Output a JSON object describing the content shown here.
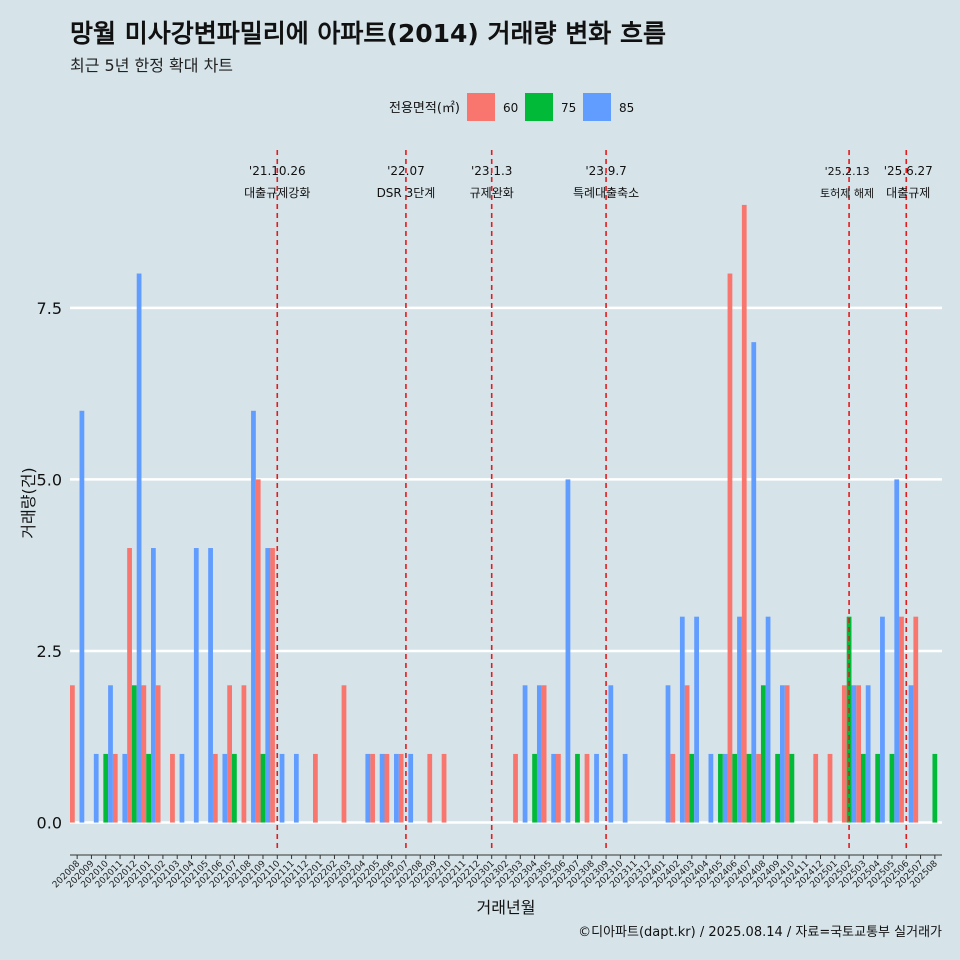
{
  "title": "망월 미사강변파밀리에 아파트(2014) 거래량 변화 흐름",
  "subtitle": "최근 5년 한정 확대 차트",
  "caption": "©디아파트(dapt.kr) / 2025.08.14 / 자료=국토교통부 실거래가",
  "colors": {
    "background": "#d6e4ea",
    "s60": "#f8766d",
    "s75": "#00ba38",
    "s85": "#619cff",
    "event_line": "#e41a1c"
  },
  "chart_data": {
    "type": "bar",
    "xlabel": "거래년월",
    "ylabel": "거래량(건)",
    "ylim": [
      -0.4,
      9.8
    ],
    "yticks": [
      0.0,
      2.5,
      5.0,
      7.5
    ],
    "ytick_labels": [
      "0.0",
      "2.5",
      "5.0",
      "7.5"
    ],
    "grid": true,
    "legend": {
      "title": "전용면적(㎡)",
      "position": "top",
      "entries": [
        "60",
        "75",
        "85"
      ]
    },
    "categories": [
      "202008",
      "202009",
      "202010",
      "202011",
      "202012",
      "202101",
      "202102",
      "202103",
      "202104",
      "202105",
      "202106",
      "202107",
      "202108",
      "202109",
      "202110",
      "202111",
      "202112",
      "202201",
      "202202",
      "202203",
      "202204",
      "202205",
      "202206",
      "202207",
      "202208",
      "202209",
      "202210",
      "202211",
      "202212",
      "202301",
      "202302",
      "202303",
      "202304",
      "202305",
      "202306",
      "202307",
      "202308",
      "202309",
      "202310",
      "202311",
      "202312",
      "202401",
      "202402",
      "202403",
      "202404",
      "202405",
      "202406",
      "202407",
      "202408",
      "202409",
      "202410",
      "202411",
      "202412",
      "202501",
      "202502",
      "202503",
      "202504",
      "202505",
      "202506",
      "202507",
      "202508"
    ],
    "series": [
      {
        "name": "60",
        "values": [
          2,
          0,
          0,
          1,
          4,
          2,
          2,
          1,
          0,
          0,
          1,
          2,
          2,
          5,
          4,
          0,
          0,
          1,
          0,
          2,
          0,
          1,
          1,
          1,
          0,
          1,
          1,
          0,
          0,
          0,
          0,
          1,
          0,
          2,
          1,
          0,
          1,
          0,
          0,
          0,
          0,
          0,
          1,
          2,
          0,
          0,
          8,
          9,
          1,
          0,
          2,
          0,
          1,
          1,
          2,
          2,
          0,
          0,
          3,
          3,
          0
        ]
      },
      {
        "name": "75",
        "values": [
          0,
          0,
          1,
          0,
          2,
          1,
          0,
          0,
          0,
          0,
          0,
          1,
          0,
          1,
          0,
          0,
          0,
          0,
          0,
          0,
          0,
          0,
          0,
          0,
          0,
          0,
          0,
          0,
          0,
          0,
          0,
          0,
          1,
          0,
          0,
          1,
          0,
          0,
          0,
          0,
          0,
          0,
          0,
          1,
          0,
          1,
          1,
          1,
          2,
          1,
          1,
          0,
          0,
          0,
          3,
          1,
          1,
          1,
          0,
          0,
          1
        ]
      },
      {
        "name": "85",
        "values": [
          6,
          1,
          2,
          1,
          8,
          4,
          0,
          1,
          4,
          4,
          1,
          0,
          6,
          4,
          1,
          1,
          0,
          0,
          0,
          0,
          1,
          1,
          1,
          1,
          0,
          0,
          0,
          0,
          0,
          0,
          0,
          2,
          2,
          1,
          5,
          0,
          1,
          2,
          1,
          0,
          0,
          2,
          3,
          3,
          1,
          1,
          3,
          7,
          3,
          2,
          0,
          0,
          0,
          0,
          2,
          2,
          3,
          5,
          2,
          0,
          0
        ]
      }
    ],
    "events": [
      {
        "date": "'21.10.26",
        "label": "대출규제강화",
        "at": "202110"
      },
      {
        "date": "'22.07",
        "label": "DSR 3단계",
        "at": "202207"
      },
      {
        "date": "'23.1.3",
        "label": "규제완화",
        "at": "202301"
      },
      {
        "date": "'23.9.7",
        "label": "특례대출축소",
        "at": "202309"
      },
      {
        "date": "'25.2.13",
        "label": "토허제 해제",
        "at": "202502"
      },
      {
        "date": "'25.6.27",
        "label": "대출규제",
        "at": "202506"
      }
    ]
  }
}
